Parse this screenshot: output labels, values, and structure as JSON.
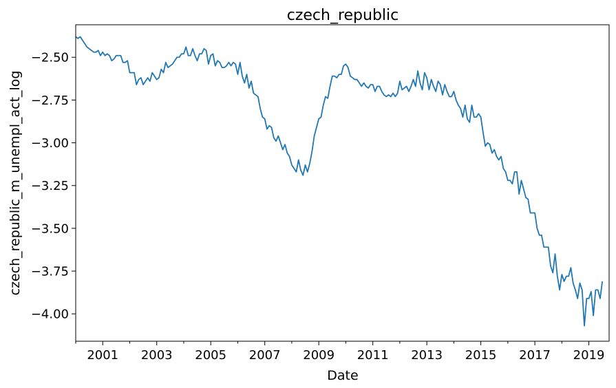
{
  "chart_data": {
    "type": "line",
    "title": "czech_republic",
    "xlabel": "Date",
    "ylabel": "czech_republic_m_unempl_act_log",
    "x_range": [
      "2000-01",
      "2019-10"
    ],
    "ylim": [
      -4.16,
      -2.31
    ],
    "x_ticks": [
      "2001",
      "2003",
      "2005",
      "2007",
      "2009",
      "2011",
      "2013",
      "2015",
      "2017",
      "2019"
    ],
    "y_ticks": [
      -2.5,
      -2.75,
      -3.0,
      -3.25,
      -3.5,
      -3.75,
      -4.0
    ],
    "y_tick_labels": [
      "−2.50",
      "−2.75",
      "−3.00",
      "−3.25",
      "−3.50",
      "−3.75",
      "−4.00"
    ],
    "grid": false,
    "series_color": "#1f77b4",
    "series": [
      {
        "start": "2000-01",
        "frequency": "monthly",
        "values": [
          -2.38,
          -2.39,
          -2.38,
          -2.4,
          -2.42,
          -2.44,
          -2.45,
          -2.46,
          -2.47,
          -2.47,
          -2.46,
          -2.49,
          -2.47,
          -2.49,
          -2.48,
          -2.49,
          -2.52,
          -2.51,
          -2.49,
          -2.49,
          -2.49,
          -2.53,
          -2.53,
          -2.52,
          -2.59,
          -2.59,
          -2.59,
          -2.66,
          -2.63,
          -2.62,
          -2.66,
          -2.64,
          -2.62,
          -2.64,
          -2.59,
          -2.61,
          -2.63,
          -2.62,
          -2.57,
          -2.59,
          -2.53,
          -2.56,
          -2.55,
          -2.54,
          -2.52,
          -2.5,
          -2.5,
          -2.48,
          -2.48,
          -2.44,
          -2.49,
          -2.49,
          -2.45,
          -2.49,
          -2.52,
          -2.48,
          -2.48,
          -2.45,
          -2.46,
          -2.54,
          -2.49,
          -2.48,
          -2.55,
          -2.52,
          -2.53,
          -2.56,
          -2.56,
          -2.55,
          -2.53,
          -2.55,
          -2.53,
          -2.54,
          -2.6,
          -2.53,
          -2.61,
          -2.65,
          -2.6,
          -2.68,
          -2.64,
          -2.71,
          -2.72,
          -2.73,
          -2.8,
          -2.85,
          -2.86,
          -2.92,
          -2.9,
          -2.91,
          -2.97,
          -2.99,
          -2.96,
          -3.0,
          -3.04,
          -3.01,
          -3.06,
          -3.08,
          -3.13,
          -3.15,
          -3.17,
          -3.1,
          -3.16,
          -3.19,
          -3.13,
          -3.17,
          -3.12,
          -3.05,
          -2.96,
          -2.91,
          -2.86,
          -2.85,
          -2.78,
          -2.73,
          -2.74,
          -2.67,
          -2.61,
          -2.61,
          -2.62,
          -2.6,
          -2.6,
          -2.55,
          -2.54,
          -2.56,
          -2.61,
          -2.62,
          -2.63,
          -2.63,
          -2.65,
          -2.67,
          -2.65,
          -2.67,
          -2.68,
          -2.66,
          -2.66,
          -2.7,
          -2.67,
          -2.67,
          -2.7,
          -2.72,
          -2.73,
          -2.72,
          -2.73,
          -2.71,
          -2.73,
          -2.71,
          -2.64,
          -2.69,
          -2.68,
          -2.67,
          -2.7,
          -2.67,
          -2.63,
          -2.67,
          -2.58,
          -2.65,
          -2.69,
          -2.59,
          -2.62,
          -2.69,
          -2.63,
          -2.67,
          -2.7,
          -2.64,
          -2.66,
          -2.72,
          -2.66,
          -2.7,
          -2.73,
          -2.73,
          -2.7,
          -2.75,
          -2.78,
          -2.8,
          -2.85,
          -2.78,
          -2.86,
          -2.88,
          -2.78,
          -2.85,
          -2.85,
          -2.83,
          -2.85,
          -2.94,
          -3.02,
          -3.0,
          -3.01,
          -3.06,
          -3.04,
          -3.08,
          -3.1,
          -3.08,
          -3.15,
          -3.17,
          -3.22,
          -3.22,
          -3.24,
          -3.17,
          -3.17,
          -3.3,
          -3.22,
          -3.27,
          -3.32,
          -3.33,
          -3.41,
          -3.41,
          -3.41,
          -3.5,
          -3.54,
          -3.54,
          -3.61,
          -3.61,
          -3.61,
          -3.72,
          -3.76,
          -3.65,
          -3.78,
          -3.86,
          -3.77,
          -3.81,
          -3.78,
          -3.78,
          -3.73,
          -3.82,
          -3.86,
          -3.91,
          -3.82,
          -3.86,
          -4.07,
          -3.91,
          -3.91,
          -3.87,
          -4.01,
          -3.86,
          -3.86,
          -3.91,
          -3.81
        ]
      }
    ]
  }
}
